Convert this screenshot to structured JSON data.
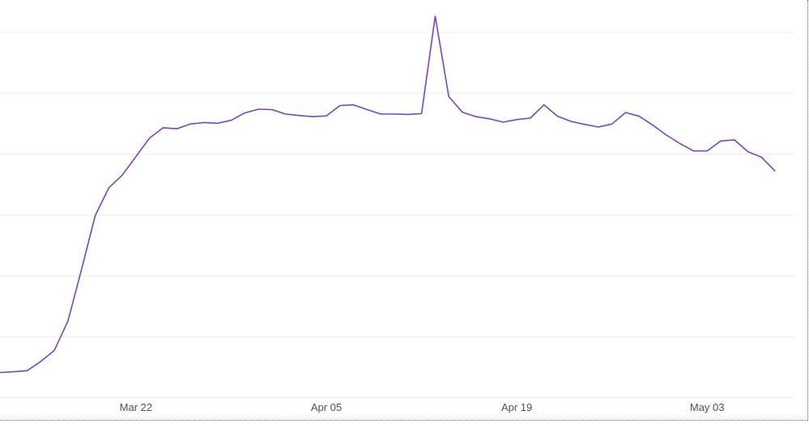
{
  "chart_data": {
    "type": "line",
    "title": "",
    "xlabel": "",
    "ylabel": "",
    "x_tick_labels": [
      "Mar 22",
      "Apr 05",
      "Apr 19",
      "May 03"
    ],
    "x_start": "2020-03-12",
    "x_end": "2020-05-09",
    "y_ticks_count": 6,
    "ylim": [
      0,
      100
    ],
    "grid": true,
    "series": [
      {
        "color": "#7443d6",
        "x": [
          "2020-03-12",
          "2020-03-13",
          "2020-03-14",
          "2020-03-15",
          "2020-03-16",
          "2020-03-17",
          "2020-03-18",
          "2020-03-19",
          "2020-03-20",
          "2020-03-21",
          "2020-03-22",
          "2020-03-23",
          "2020-03-24",
          "2020-03-25",
          "2020-03-26",
          "2020-03-27",
          "2020-03-28",
          "2020-03-29",
          "2020-03-30",
          "2020-03-31",
          "2020-04-01",
          "2020-04-02",
          "2020-04-03",
          "2020-04-04",
          "2020-04-05",
          "2020-04-06",
          "2020-04-07",
          "2020-04-08",
          "2020-04-09",
          "2020-04-10",
          "2020-04-11",
          "2020-04-12",
          "2020-04-13",
          "2020-04-14",
          "2020-04-15",
          "2020-04-16",
          "2020-04-17",
          "2020-04-18",
          "2020-04-19",
          "2020-04-20",
          "2020-04-21",
          "2020-04-22",
          "2020-04-23",
          "2020-04-24",
          "2020-04-25",
          "2020-04-26",
          "2020-04-27",
          "2020-04-28",
          "2020-04-29",
          "2020-04-30",
          "2020-05-01",
          "2020-05-02",
          "2020-05-03",
          "2020-05-04",
          "2020-05-05",
          "2020-05-06",
          "2020-05-07",
          "2020-05-08"
        ],
        "values": [
          3.5,
          3.7,
          4.0,
          6.5,
          9.5,
          17.5,
          31.5,
          46.0,
          53.5,
          57.0,
          62.0,
          67.0,
          69.8,
          69.5,
          70.8,
          71.2,
          71.0,
          71.8,
          73.8,
          74.8,
          74.7,
          73.5,
          73.1,
          72.8,
          73.0,
          75.8,
          76.0,
          74.7,
          73.5,
          73.5,
          73.4,
          73.6,
          100.0,
          78.2,
          74.0,
          72.8,
          72.2,
          71.3,
          72.0,
          72.4,
          76.0,
          72.9,
          71.5,
          70.7,
          70.0,
          70.8,
          73.9,
          72.9,
          70.5,
          67.8,
          65.5,
          63.5,
          63.5,
          66.2,
          66.5,
          63.3,
          61.8,
          58.0
        ]
      }
    ]
  }
}
